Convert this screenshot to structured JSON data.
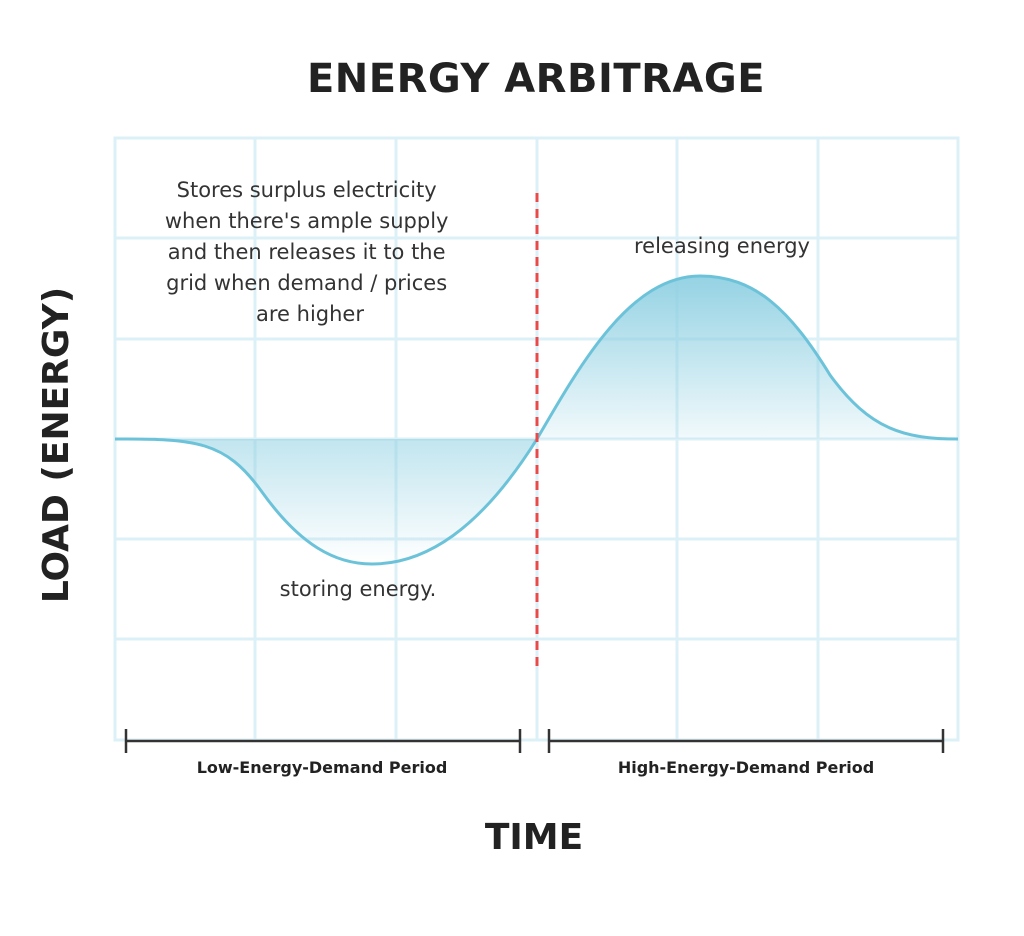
{
  "title": "ENERGY ARBITRAGE",
  "y_axis_label": "LOAD (ENERGY)",
  "x_axis_label": "TIME",
  "description_lines": [
    "Stores surplus electricity",
    "when there's ample supply",
    "and then releases it to the",
    "grid when demand / prices",
    "are higher"
  ],
  "labels": {
    "storing": "storing energy.",
    "releasing": "releasing energy"
  },
  "periods": {
    "low": "Low-Energy-Demand Period",
    "high": "High-Energy-Demand Period"
  },
  "colors": {
    "curve": "#6cc3d9",
    "fill": "#8fd0e2",
    "grid": "#dcf0f7",
    "divider": "#e84a4a",
    "text": "#222222"
  }
}
